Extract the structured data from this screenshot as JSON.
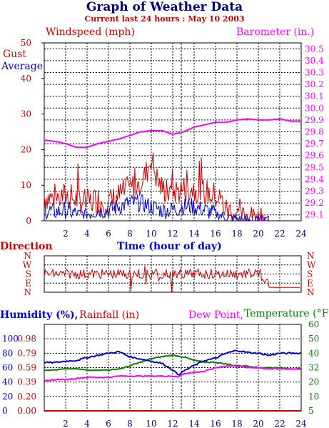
{
  "page": {
    "title": "Graph of Weather Data",
    "subtitle": "Current last 24 hours : May 10 2003"
  },
  "chart_data": [
    {
      "type": "line",
      "panel": "wind",
      "labels": {
        "windspeed": "Windspeed (mph)",
        "barometer": "Barometer (in.)",
        "gust": "Gust",
        "average": "Average",
        "xlabel": "Time (hour of day)"
      },
      "xlim": [
        0,
        24
      ],
      "x_ticks": [
        2,
        4,
        6,
        8,
        10,
        12,
        14,
        16,
        18,
        20,
        22,
        24
      ],
      "y_left_ticks": [
        0,
        10,
        20,
        30,
        40,
        50
      ],
      "ylim_left": [
        0,
        50
      ],
      "y_right_ticks": [
        "29.1",
        "29.2",
        "29.3",
        "29.4",
        "29.5",
        "29.6",
        "29.7",
        "29.8",
        "29.9",
        "30.0",
        "30.1",
        "30.2",
        "30.3",
        "30.4",
        "30.5"
      ],
      "ylim_right": [
        29.05,
        30.55
      ],
      "now_marker_hour": 12.8,
      "grid": true,
      "colors": {
        "gust": "#cc0000",
        "average": "#0000cc",
        "barometer": "#ff00ff",
        "axis_left": "#cc0000",
        "axis_right": "#ff00ff"
      },
      "series": [
        {
          "name": "Gust",
          "x": [
            0,
            1,
            2,
            3,
            4,
            5,
            6,
            7,
            8,
            9,
            9.5,
            10,
            10.5,
            11,
            12,
            13,
            14,
            15,
            16,
            16.5,
            17,
            18,
            19,
            20,
            20.5,
            21,
            22,
            23,
            24
          ],
          "values": [
            7,
            6,
            7,
            6,
            5,
            6,
            5,
            7,
            9,
            11,
            13,
            18,
            12,
            9,
            8,
            9,
            9,
            8,
            7,
            6,
            3,
            2,
            1.5,
            1,
            1.5,
            0,
            0,
            0.5,
            0
          ]
        },
        {
          "name": "Average",
          "x": [
            0,
            1,
            2,
            3,
            4,
            5,
            6,
            7,
            8,
            9,
            10,
            11,
            12,
            13,
            14,
            15,
            16,
            17,
            18,
            19,
            20,
            24
          ],
          "values": [
            3,
            2.5,
            3,
            2,
            2,
            3,
            3,
            4,
            5,
            5,
            4,
            3,
            3,
            4,
            4,
            3,
            2,
            1,
            0.5,
            0,
            0,
            0
          ]
        },
        {
          "name": "Barometer",
          "x": [
            0,
            1,
            2,
            3,
            4,
            5,
            6,
            7,
            8,
            9,
            10,
            11,
            12,
            13,
            14,
            15,
            16,
            17,
            18,
            19,
            20,
            21,
            22,
            23,
            24
          ],
          "values": [
            29.73,
            29.72,
            29.7,
            29.67,
            29.67,
            29.7,
            29.72,
            29.74,
            29.77,
            29.8,
            29.81,
            29.81,
            29.78,
            29.8,
            29.84,
            29.86,
            29.88,
            29.88,
            29.9,
            29.91,
            29.9,
            29.9,
            29.91,
            29.89,
            29.89
          ]
        }
      ]
    },
    {
      "type": "line",
      "panel": "direction",
      "labels": {
        "direction": "Direction"
      },
      "compass_ticks": [
        "N",
        "W",
        "S",
        "E",
        "N"
      ],
      "colors": {
        "direction": "#cc0000",
        "axis": "#cc0000"
      },
      "series": [
        {
          "name": "Direction",
          "x": [
            0,
            2,
            4,
            6,
            8,
            9,
            10,
            11,
            12,
            13,
            14,
            16,
            18,
            20,
            20.5,
            21,
            22,
            24
          ],
          "values": [
            "S",
            "S",
            "S",
            "S",
            "S",
            "S",
            "S",
            "S",
            "S",
            "S",
            "S",
            "S",
            "S",
            "S",
            "E",
            "E",
            "E",
            "E"
          ]
        }
      ]
    },
    {
      "type": "line",
      "panel": "climate",
      "labels": {
        "humidity": "Humidity (%),",
        "rainfall": "Rainfall (in)",
        "dewpoint": "Dew Point,",
        "temperature": "Temperature (°F)"
      },
      "humidity_ticks": [
        0,
        20,
        40,
        60,
        80,
        100
      ],
      "rain_ticks": [
        "0.00",
        "0.20",
        "0.39",
        "0.59",
        "0.79",
        "0.98"
      ],
      "temp_ticks": [
        5,
        10,
        20,
        32,
        40,
        50,
        60
      ],
      "colors": {
        "humidity": "#0000cc",
        "rainfall": "#cc0000",
        "dewpoint": "#ff00ff",
        "temperature": "#008000"
      },
      "series": [
        {
          "name": "Humidity",
          "x": [
            0,
            1,
            2,
            3,
            4,
            5,
            6,
            7,
            8,
            9,
            10,
            11,
            12,
            12.5,
            13,
            14,
            15,
            16,
            17,
            18,
            19,
            20,
            21,
            22,
            23,
            24
          ],
          "values": [
            67,
            67,
            69,
            70,
            74,
            77,
            80,
            82,
            75,
            72,
            69,
            66,
            57,
            50,
            55,
            63,
            70,
            73,
            80,
            84,
            81,
            80,
            77,
            80,
            80,
            80
          ]
        },
        {
          "name": "Rainfall",
          "x": [
            0,
            24
          ],
          "values": [
            0,
            0
          ]
        },
        {
          "name": "Dew Point",
          "x": [
            0,
            1,
            2,
            3,
            4,
            5,
            6,
            7,
            8,
            9,
            10,
            11,
            12,
            12.5,
            13,
            14,
            15,
            16,
            17,
            18,
            19,
            20,
            21,
            22,
            23,
            24
          ],
          "values": [
            21,
            22,
            22,
            23,
            24,
            24,
            24,
            25,
            25,
            25,
            25,
            25,
            25,
            24,
            27,
            28,
            29,
            32,
            33,
            33,
            32,
            32,
            31,
            31,
            31,
            31
          ]
        },
        {
          "name": "Temperature",
          "x": [
            0,
            1,
            2,
            3,
            4,
            5,
            6,
            7,
            8,
            9,
            10,
            11,
            12,
            13,
            14,
            15,
            16,
            17,
            18,
            19,
            20,
            21,
            22,
            23,
            24
          ],
          "values": [
            30,
            30,
            31,
            31,
            30,
            30,
            30,
            31,
            33,
            35,
            37,
            38,
            39,
            38,
            36,
            35,
            35,
            34,
            33,
            33,
            32,
            32,
            32,
            31,
            31
          ]
        }
      ]
    }
  ]
}
